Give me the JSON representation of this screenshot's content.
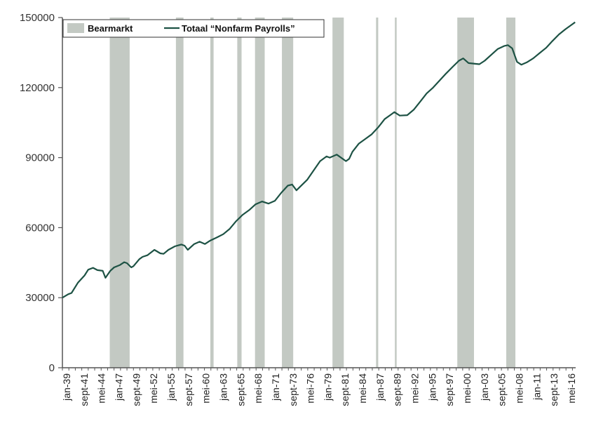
{
  "chart_data": {
    "type": "line",
    "title": "",
    "xlabel": "",
    "ylabel": "",
    "ylim": [
      0,
      150000
    ],
    "y_ticks": [
      "0",
      "30000",
      "60000",
      "90000",
      "120000",
      "150000"
    ],
    "x_tick_labels": [
      "jan-39",
      "sept-41",
      "mei-44",
      "jan-47",
      "sept-49",
      "mei-52",
      "jan-55",
      "sept-57",
      "mei-60",
      "jan-63",
      "sept-65",
      "mei-68",
      "jan-71",
      "sept-73",
      "mei-76",
      "jan-79",
      "sept-81",
      "mei-84",
      "jan-87",
      "sept-89",
      "mei-92",
      "jan-95",
      "sept-97",
      "mei-00",
      "jan-03",
      "sept-05",
      "mei-08",
      "jan-11",
      "sept-13",
      "mei-16"
    ],
    "grid": false,
    "legend_position": "top-left",
    "colors": {
      "line": "#1d5244",
      "bear": "#c3c9c3",
      "axis": "#555555"
    },
    "bear_series": {
      "name": "Bearmarkt",
      "periods": [
        {
          "start": "1946-05",
          "end": "1949-06"
        },
        {
          "start": "1956-08",
          "end": "1957-10"
        },
        {
          "start": "1961-12",
          "end": "1962-06"
        },
        {
          "start": "1966-02",
          "end": "1966-10"
        },
        {
          "start": "1968-11",
          "end": "1970-05"
        },
        {
          "start": "1973-01",
          "end": "1974-10"
        },
        {
          "start": "1980-11",
          "end": "1982-08"
        },
        {
          "start": "1987-08",
          "end": "1987-12"
        },
        {
          "start": "1990-07",
          "end": "1990-10"
        },
        {
          "start": "2000-03",
          "end": "2002-10"
        },
        {
          "start": "2007-10",
          "end": "2009-03"
        }
      ]
    },
    "series": [
      {
        "name": "Totaal “Nonfarm Payrolls”",
        "points": [
          [
            "1939-01",
            30000
          ],
          [
            "1939-12",
            31500
          ],
          [
            "1940-06",
            32000
          ],
          [
            "1941-06",
            36500
          ],
          [
            "1942-06",
            39500
          ],
          [
            "1943-01",
            42000
          ],
          [
            "1943-10",
            42800
          ],
          [
            "1944-06",
            41800
          ],
          [
            "1945-04",
            41500
          ],
          [
            "1945-09",
            38500
          ],
          [
            "1946-06",
            41500
          ],
          [
            "1947-01",
            43000
          ],
          [
            "1947-12",
            44000
          ],
          [
            "1948-08",
            45200
          ],
          [
            "1949-01",
            44800
          ],
          [
            "1949-09",
            43000
          ],
          [
            "1950-01",
            43500
          ],
          [
            "1950-12",
            46500
          ],
          [
            "1951-06",
            47500
          ],
          [
            "1952-03",
            48200
          ],
          [
            "1953-04",
            50500
          ],
          [
            "1954-03",
            49000
          ],
          [
            "1954-09",
            48800
          ],
          [
            "1955-06",
            50500
          ],
          [
            "1956-06",
            52000
          ],
          [
            "1957-06",
            52800
          ],
          [
            "1957-12",
            52300
          ],
          [
            "1958-06",
            50500
          ],
          [
            "1959-06",
            53000
          ],
          [
            "1960-04",
            54000
          ],
          [
            "1961-02",
            53000
          ],
          [
            "1961-12",
            54500
          ],
          [
            "1962-12",
            55800
          ],
          [
            "1963-12",
            57200
          ],
          [
            "1964-12",
            59500
          ],
          [
            "1965-12",
            62800
          ],
          [
            "1966-12",
            65500
          ],
          [
            "1967-12",
            67500
          ],
          [
            "1968-12",
            70000
          ],
          [
            "1969-12",
            71200
          ],
          [
            "1970-12",
            70300
          ],
          [
            "1971-12",
            71500
          ],
          [
            "1972-12",
            75000
          ],
          [
            "1973-12",
            78000
          ],
          [
            "1974-08",
            78500
          ],
          [
            "1975-04",
            76000
          ],
          [
            "1975-12",
            77800
          ],
          [
            "1976-12",
            80500
          ],
          [
            "1977-12",
            84500
          ],
          [
            "1978-12",
            88500
          ],
          [
            "1979-12",
            90500
          ],
          [
            "1980-06",
            90000
          ],
          [
            "1981-07",
            91300
          ],
          [
            "1982-12",
            88500
          ],
          [
            "1983-06",
            89500
          ],
          [
            "1983-12",
            92500
          ],
          [
            "1984-12",
            96000
          ],
          [
            "1985-12",
            98000
          ],
          [
            "1986-12",
            100000
          ],
          [
            "1987-12",
            103000
          ],
          [
            "1988-12",
            106500
          ],
          [
            "1989-12",
            108500
          ],
          [
            "1990-06",
            109500
          ],
          [
            "1991-04",
            108000
          ],
          [
            "1992-06",
            108200
          ],
          [
            "1993-06",
            110500
          ],
          [
            "1994-06",
            114000
          ],
          [
            "1995-06",
            117500
          ],
          [
            "1996-06",
            120000
          ],
          [
            "1997-06",
            123000
          ],
          [
            "1998-06",
            126000
          ],
          [
            "1999-06",
            128800
          ],
          [
            "2000-06",
            131500
          ],
          [
            "2001-02",
            132500
          ],
          [
            "2001-12",
            130500
          ],
          [
            "2002-12",
            130200
          ],
          [
            "2003-08",
            130000
          ],
          [
            "2004-06",
            131500
          ],
          [
            "2005-06",
            134000
          ],
          [
            "2006-06",
            136500
          ],
          [
            "2007-06",
            137800
          ],
          [
            "2008-01",
            138200
          ],
          [
            "2008-09",
            136800
          ],
          [
            "2009-06",
            131000
          ],
          [
            "2010-02",
            129800
          ],
          [
            "2010-12",
            130800
          ],
          [
            "2011-12",
            132500
          ],
          [
            "2012-12",
            134800
          ],
          [
            "2013-12",
            137000
          ],
          [
            "2014-12",
            140000
          ],
          [
            "2015-12",
            142800
          ],
          [
            "2016-12",
            145000
          ],
          [
            "2017-12",
            147000
          ],
          [
            "2018-06",
            148000
          ]
        ]
      }
    ]
  }
}
